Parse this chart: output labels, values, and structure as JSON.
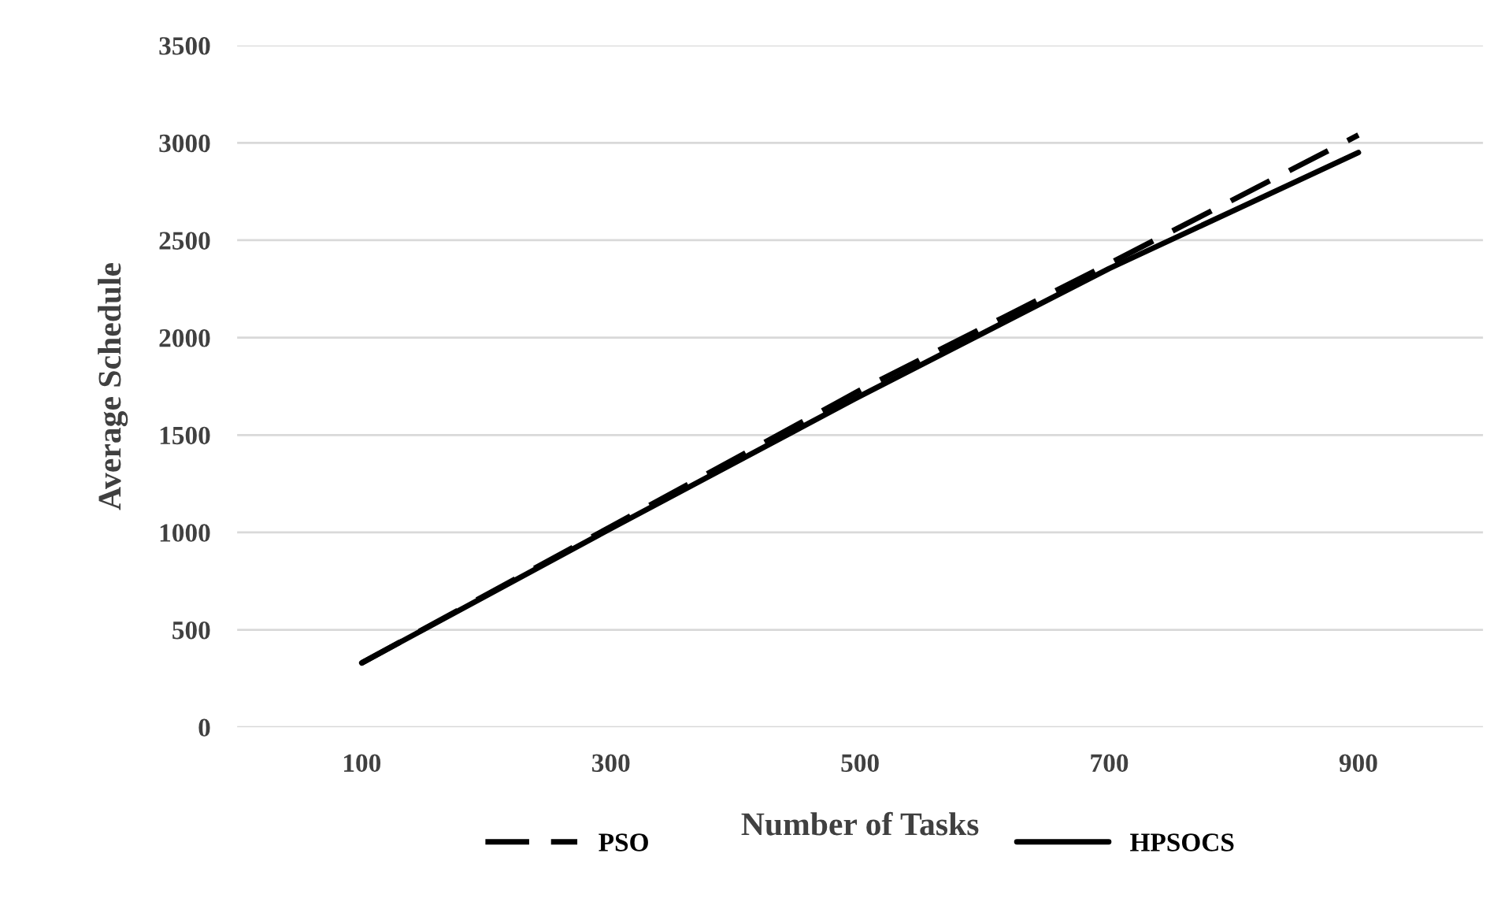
{
  "chart_data": {
    "type": "line",
    "xlabel": "Number of Tasks",
    "ylabel": "Average Schedule",
    "categories": [
      "100",
      "300",
      "500",
      "700",
      "900"
    ],
    "series": [
      {
        "name": "PSO",
        "color": "#000000",
        "line_style": "dashed",
        "values": [
          330,
          1030,
          1730,
          2380,
          3040
        ]
      },
      {
        "name": "HPSOCS",
        "color": "#000000",
        "line_style": "solid",
        "values": [
          330,
          1020,
          1700,
          2355,
          2950
        ]
      }
    ],
    "ylim": [
      0,
      3500
    ],
    "yticks": [
      0,
      500,
      1000,
      1500,
      2000,
      2500,
      3000,
      3500
    ],
    "grid": "y",
    "legend": "bottom",
    "marker": "none"
  }
}
